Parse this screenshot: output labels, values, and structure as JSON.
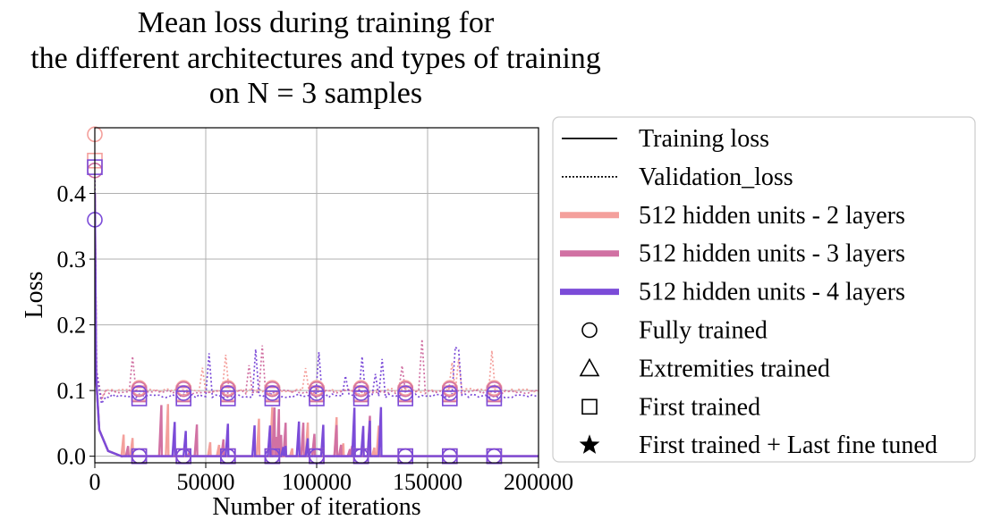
{
  "chart_data": {
    "type": "line",
    "title": [
      "Mean loss during training for",
      "the different architectures and types of training",
      "on N = 3 samples"
    ],
    "xlabel": "Number of iterations",
    "ylabel": "Loss",
    "xlim": [
      0,
      200000
    ],
    "ylim": [
      -0.01,
      0.5
    ],
    "x_ticks": [
      0,
      50000,
      100000,
      150000,
      200000
    ],
    "x_tick_labels": [
      "0",
      "50000",
      "100000",
      "150000",
      "200000"
    ],
    "y_ticks": [
      0.0,
      0.1,
      0.2,
      0.3,
      0.4
    ],
    "y_tick_labels": [
      "0.0",
      "0.1",
      "0.2",
      "0.3",
      "0.4"
    ],
    "grid": true,
    "legend_position": "outside-right",
    "marker_x": [
      0,
      20000,
      40000,
      60000,
      80000,
      100000,
      120000,
      140000,
      160000,
      180000
    ],
    "series": [
      {
        "architecture": "512 hidden units - 2 layers",
        "color": "#f4a09c",
        "final_training_loss": 0.0,
        "final_validation_loss": 0.1
      },
      {
        "architecture": "512 hidden units - 3 layers",
        "color": "#d171a3",
        "final_training_loss": 0.0,
        "final_validation_loss": 0.098
      },
      {
        "architecture": "512 hidden units - 4 layers",
        "color": "#7b4bd8",
        "final_training_loss": 0.0,
        "final_validation_loss": 0.092
      }
    ],
    "initial_loss_markers": [
      {
        "architecture": "512 hidden units - 2 layers",
        "marker": "circle",
        "y": 0.49
      },
      {
        "architecture": "512 hidden units - 2 layers",
        "marker": "square",
        "y": 0.45
      },
      {
        "architecture": "512 hidden units - 3 layers",
        "marker": "circle",
        "y": 0.435
      },
      {
        "architecture": "512 hidden units - 4 layers",
        "marker": "square",
        "y": 0.44
      },
      {
        "architecture": "512 hidden units - 4 layers",
        "marker": "circle",
        "y": 0.36
      }
    ],
    "legend": [
      {
        "label": "Training loss",
        "kind": "line",
        "style": "solid",
        "color": "#000000"
      },
      {
        "label": "Validation_loss",
        "kind": "line",
        "style": "dotted",
        "color": "#000000"
      },
      {
        "label": "512 hidden units - 2 layers",
        "kind": "thickline",
        "color": "#f4a09c"
      },
      {
        "label": "512 hidden units - 3 layers",
        "kind": "thickline",
        "color": "#d171a3"
      },
      {
        "label": "512 hidden units - 4 layers",
        "kind": "thickline",
        "color": "#7b4bd8"
      },
      {
        "label": "Fully trained",
        "kind": "marker",
        "marker": "circle"
      },
      {
        "label": "Extremities trained",
        "kind": "marker",
        "marker": "triangle"
      },
      {
        "label": "First trained",
        "kind": "marker",
        "marker": "square"
      },
      {
        "label": "First trained + Last fine tuned",
        "kind": "marker",
        "marker": "star"
      }
    ]
  }
}
